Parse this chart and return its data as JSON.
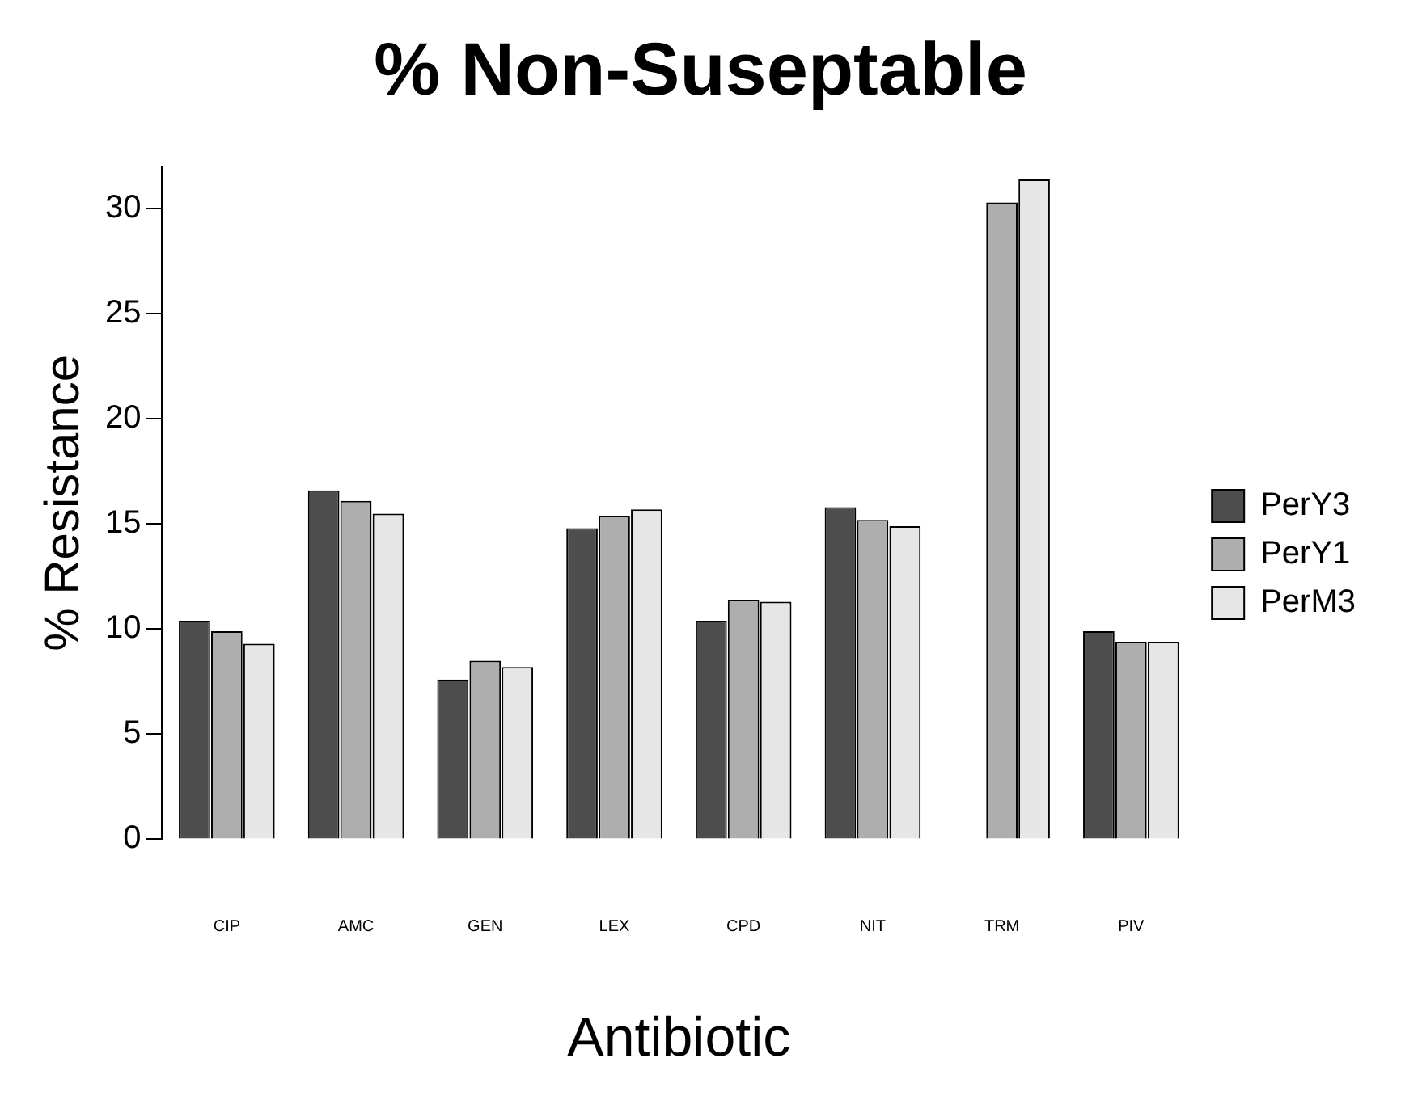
{
  "chart_data": {
    "type": "bar",
    "title": "% Non-Suseptable",
    "xlabel": "Antibiotic",
    "ylabel": "% Resistance",
    "categories": [
      "CIP",
      "AMC",
      "GEN",
      "LEX",
      "CPD",
      "NIT",
      "TRM",
      "PIV"
    ],
    "series": [
      {
        "name": "PerY3",
        "color": "#4d4d4d",
        "values": [
          10.4,
          16.6,
          7.6,
          14.8,
          10.4,
          15.8,
          null,
          9.9
        ]
      },
      {
        "name": "PerY1",
        "color": "#aeaeae",
        "values": [
          9.9,
          16.1,
          8.5,
          15.4,
          11.4,
          15.2,
          30.3,
          9.4
        ]
      },
      {
        "name": "PerM3",
        "color": "#e6e6e6",
        "values": [
          9.3,
          15.5,
          8.2,
          15.7,
          11.3,
          14.9,
          31.4,
          9.4
        ]
      }
    ],
    "ylim": [
      0,
      32
    ],
    "yticks": [
      0,
      5,
      10,
      15,
      20,
      25,
      30
    ],
    "grid": false,
    "legend": "right"
  }
}
